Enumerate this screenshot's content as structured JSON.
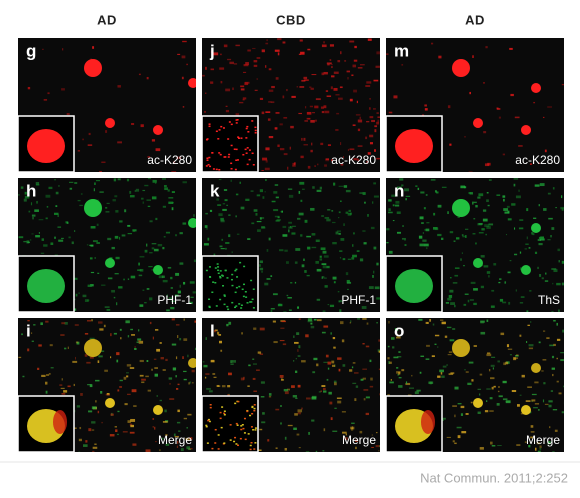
{
  "columns": [
    {
      "header": "AD",
      "panels": [
        {
          "letter": "g",
          "label": "ac-K280"
        },
        {
          "letter": "h",
          "label": "PHF-1"
        },
        {
          "letter": "i",
          "label": "Merge"
        }
      ]
    },
    {
      "header": "CBD",
      "panels": [
        {
          "letter": "j",
          "label": "ac-K280"
        },
        {
          "letter": "k",
          "label": "PHF-1"
        },
        {
          "letter": "l",
          "label": "Merge"
        }
      ]
    },
    {
      "header": "AD",
      "panels": [
        {
          "letter": "m",
          "label": "ac-K280"
        },
        {
          "letter": "n",
          "label": "ThS"
        },
        {
          "letter": "o",
          "label": "Merge"
        }
      ]
    }
  ],
  "citation": "Nat Commun. 2011;2:252"
}
